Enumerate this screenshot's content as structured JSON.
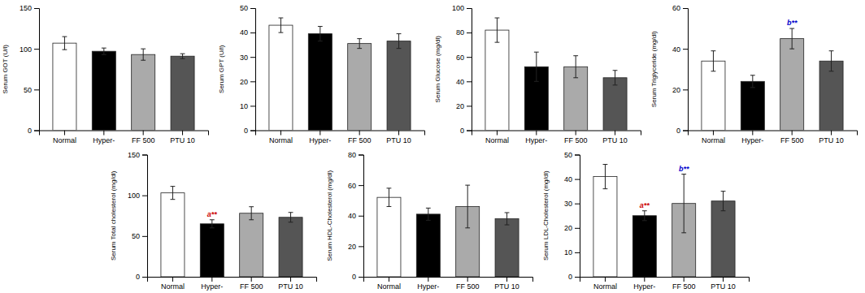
{
  "chart_data": [
    {
      "type": "bar",
      "y_label": "Serum GOT (U/l)",
      "categories": [
        "Normal",
        "Hyper-",
        "FF 500",
        "PTU 10"
      ],
      "values": [
        107,
        97,
        93,
        91
      ],
      "errors": [
        8,
        4,
        7,
        3
      ],
      "colors": [
        "white",
        "black",
        "#aaaaaa",
        "#555555"
      ],
      "ylim": [
        0,
        150
      ],
      "yticks": [
        0,
        50,
        100,
        150
      ],
      "annotations": []
    },
    {
      "type": "bar",
      "y_label": "Serum GPT (U/l)",
      "categories": [
        "Normal",
        "Hyper-",
        "FF 500",
        "PTU 10"
      ],
      "values": [
        43,
        39.5,
        35.5,
        36.5
      ],
      "errors": [
        3,
        3,
        2,
        3
      ],
      "colors": [
        "white",
        "black",
        "#aaaaaa",
        "#555555"
      ],
      "ylim": [
        0,
        50
      ],
      "yticks": [
        0,
        10,
        20,
        30,
        40,
        50
      ],
      "annotations": []
    },
    {
      "type": "bar",
      "y_label": "Serum Glucose (mg/dl)",
      "categories": [
        "Normal",
        "Hyper-",
        "FF 500",
        "PTU 10"
      ],
      "values": [
        82,
        52,
        52,
        43
      ],
      "errors": [
        10,
        12,
        9,
        6
      ],
      "colors": [
        "white",
        "black",
        "#aaaaaa",
        "#555555"
      ],
      "ylim": [
        0,
        100
      ],
      "yticks": [
        0,
        20,
        40,
        60,
        80,
        100
      ],
      "annotations": []
    },
    {
      "type": "bar",
      "y_label": "Serum Triglyceride (mg/dl)",
      "categories": [
        "Normal",
        "Hyper-",
        "FF 500",
        "PTU 10"
      ],
      "values": [
        34,
        24,
        45,
        34
      ],
      "errors": [
        5,
        3,
        5,
        5
      ],
      "colors": [
        "white",
        "black",
        "#aaaaaa",
        "#555555"
      ],
      "ylim": [
        0,
        60
      ],
      "yticks": [
        0,
        20,
        40,
        60
      ],
      "annotations": [
        {
          "category": "FF 500",
          "text": "b**",
          "color": "#0000cc"
        }
      ]
    },
    {
      "type": "bar",
      "y_label": "Serum Total cholesterol (mg/dl)",
      "categories": [
        "Normal",
        "Hyper-",
        "FF 500",
        "PTU 10"
      ],
      "values": [
        103,
        65,
        78,
        73
      ],
      "errors": [
        8,
        5,
        8,
        6
      ],
      "colors": [
        "white",
        "black",
        "#aaaaaa",
        "#555555"
      ],
      "ylim": [
        0,
        150
      ],
      "yticks": [
        0,
        50,
        100,
        150
      ],
      "annotations": [
        {
          "category": "Hyper-",
          "text": "a**",
          "color": "#cc0000"
        }
      ]
    },
    {
      "type": "bar",
      "y_label": "Serum HDL-Cholesterol (mg/dl)",
      "categories": [
        "Normal",
        "Hyper-",
        "FF 500",
        "PTU 10"
      ],
      "values": [
        52,
        41,
        46,
        38
      ],
      "errors": [
        6,
        4,
        14,
        4
      ],
      "colors": [
        "white",
        "black",
        "#aaaaaa",
        "#555555"
      ],
      "ylim": [
        0,
        80
      ],
      "yticks": [
        0,
        20,
        40,
        60,
        80
      ],
      "annotations": []
    },
    {
      "type": "bar",
      "y_label": "Serum LDL-Cholesterol (mg/dl)",
      "categories": [
        "Normal",
        "Hyper-",
        "FF 500",
        "PTU 10"
      ],
      "values": [
        41,
        25,
        30,
        31
      ],
      "errors": [
        5,
        2,
        12,
        4
      ],
      "colors": [
        "white",
        "black",
        "#aaaaaa",
        "#555555"
      ],
      "ylim": [
        0,
        50
      ],
      "yticks": [
        0,
        10,
        20,
        30,
        40,
        50
      ],
      "annotations": [
        {
          "category": "Hyper-",
          "text": "a**",
          "color": "#cc0000"
        },
        {
          "category": "FF 500",
          "text": "b**",
          "color": "#0000cc"
        }
      ]
    }
  ]
}
